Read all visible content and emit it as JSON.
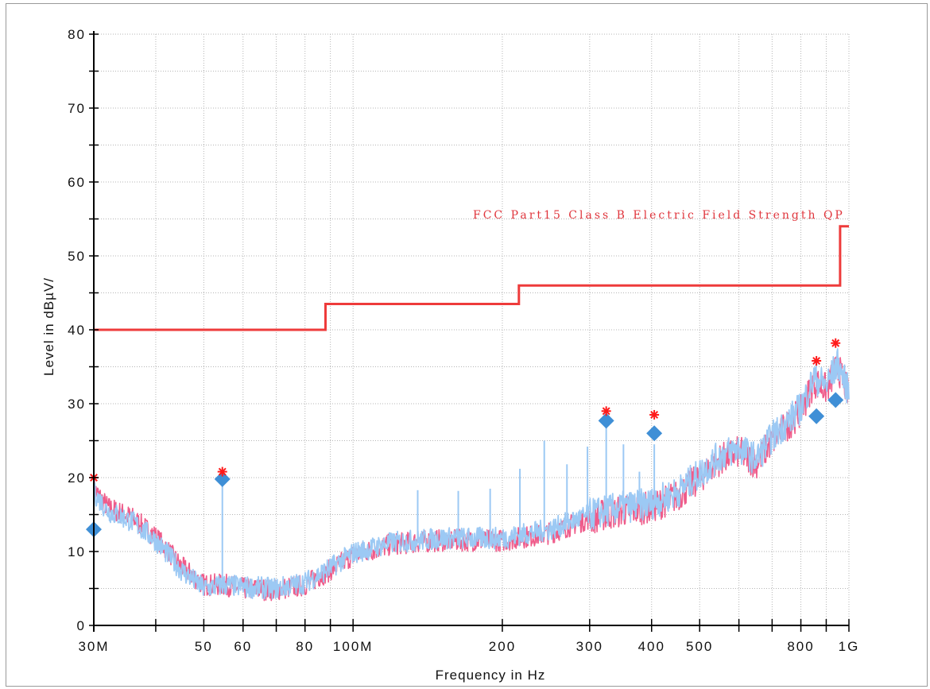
{
  "chart_data": {
    "type": "line",
    "xlabel": "Frequency in Hz",
    "ylabel": "Level in dBµV/",
    "x_scale": "log",
    "xlim": [
      30000000,
      1000000000
    ],
    "ylim": [
      0,
      80
    ],
    "y_ticks": [
      "0",
      "10",
      "20",
      "30",
      "40",
      "50",
      "60",
      "70",
      "80"
    ],
    "x_ticks": [
      {
        "value": 30000000,
        "label": "30M"
      },
      {
        "value": 40000000,
        "label": ""
      },
      {
        "value": 50000000,
        "label": "50"
      },
      {
        "value": 60000000,
        "label": "60"
      },
      {
        "value": 70000000,
        "label": ""
      },
      {
        "value": 80000000,
        "label": "80"
      },
      {
        "value": 90000000,
        "label": ""
      },
      {
        "value": 100000000,
        "label": "100M"
      },
      {
        "value": 200000000,
        "label": "200"
      },
      {
        "value": 300000000,
        "label": "300"
      },
      {
        "value": 400000000,
        "label": "400"
      },
      {
        "value": 500000000,
        "label": "500"
      },
      {
        "value": 600000000,
        "label": ""
      },
      {
        "value": 700000000,
        "label": ""
      },
      {
        "value": 800000000,
        "label": "800"
      },
      {
        "value": 900000000,
        "label": ""
      },
      {
        "value": 1000000000,
        "label": "1G"
      }
    ],
    "grid": true,
    "limit_line": {
      "label": "FCC Part15 Class B Electric Field Strength QP",
      "color": "#ee3b3b",
      "points": [
        [
          30000000,
          40
        ],
        [
          88000000,
          40
        ],
        [
          88000000,
          43.5
        ],
        [
          216000000,
          43.5
        ],
        [
          216000000,
          46
        ],
        [
          960000000,
          46
        ],
        [
          960000000,
          54
        ],
        [
          1000000000,
          54
        ]
      ]
    },
    "series": [
      {
        "color": "#ef5b8a",
        "points": [
          [
            30000000,
            18.5
          ],
          [
            32000000,
            16
          ],
          [
            36000000,
            14.5
          ],
          [
            40000000,
            12
          ],
          [
            45000000,
            8
          ],
          [
            50000000,
            5.5
          ],
          [
            55000000,
            5.5
          ],
          [
            60000000,
            5
          ],
          [
            70000000,
            4.8
          ],
          [
            80000000,
            5.5
          ],
          [
            90000000,
            7.5
          ],
          [
            100000000,
            9.5
          ],
          [
            120000000,
            11
          ],
          [
            150000000,
            11.5
          ],
          [
            200000000,
            11.5
          ],
          [
            250000000,
            12.5
          ],
          [
            300000000,
            14.5
          ],
          [
            350000000,
            15.5
          ],
          [
            400000000,
            16
          ],
          [
            450000000,
            17.5
          ],
          [
            500000000,
            20
          ],
          [
            550000000,
            22.5
          ],
          [
            600000000,
            23.5
          ],
          [
            650000000,
            22
          ],
          [
            700000000,
            25
          ],
          [
            750000000,
            27
          ],
          [
            800000000,
            29
          ],
          [
            850000000,
            33
          ],
          [
            900000000,
            32
          ],
          [
            950000000,
            35
          ],
          [
            1000000000,
            31
          ]
        ]
      },
      {
        "color": "#9cc9f4",
        "points": [
          [
            30000000,
            18
          ],
          [
            32000000,
            15.5
          ],
          [
            36000000,
            14
          ],
          [
            40000000,
            11.5
          ],
          [
            45000000,
            7.5
          ],
          [
            50000000,
            5
          ],
          [
            55000000,
            5.5
          ],
          [
            60000000,
            5.2
          ],
          [
            70000000,
            5
          ],
          [
            80000000,
            5.8
          ],
          [
            90000000,
            7.8
          ],
          [
            100000000,
            9.8
          ],
          [
            120000000,
            11.2
          ],
          [
            150000000,
            11.8
          ],
          [
            200000000,
            11.8
          ],
          [
            250000000,
            13
          ],
          [
            300000000,
            15
          ],
          [
            350000000,
            16
          ],
          [
            400000000,
            16.5
          ],
          [
            450000000,
            18
          ],
          [
            500000000,
            20.5
          ],
          [
            550000000,
            23
          ],
          [
            600000000,
            24
          ],
          [
            650000000,
            22.5
          ],
          [
            700000000,
            25.5
          ],
          [
            750000000,
            27.5
          ],
          [
            800000000,
            29.5
          ],
          [
            850000000,
            33.5
          ],
          [
            900000000,
            32.5
          ],
          [
            950000000,
            35.5
          ],
          [
            1000000000,
            31.5
          ]
        ],
        "spikes": [
          [
            54500000,
            20
          ],
          [
            135000000,
            18.3
          ],
          [
            163000000,
            18.2
          ],
          [
            189000000,
            18.5
          ],
          [
            217000000,
            21.2
          ],
          [
            243000000,
            25
          ],
          [
            270000000,
            21.8
          ],
          [
            297000000,
            24.2
          ],
          [
            324000000,
            28.8
          ],
          [
            351000000,
            24.5
          ],
          [
            378000000,
            20.8
          ],
          [
            405000000,
            24.5
          ]
        ]
      }
    ],
    "peak_markers": {
      "color": "#ff1a1a",
      "points": [
        [
          30000000,
          20
        ],
        [
          54500000,
          20.8
        ],
        [
          324000000,
          29
        ],
        [
          405000000,
          28.5
        ],
        [
          860000000,
          35.8
        ],
        [
          940000000,
          38.2
        ]
      ]
    },
    "qp_markers": {
      "color": "#3f8fd6",
      "points": [
        [
          30000000,
          13
        ],
        [
          54500000,
          19.8
        ],
        [
          324000000,
          27.7
        ],
        [
          405000000,
          26
        ],
        [
          860000000,
          28.3
        ],
        [
          940000000,
          30.5
        ]
      ]
    }
  }
}
